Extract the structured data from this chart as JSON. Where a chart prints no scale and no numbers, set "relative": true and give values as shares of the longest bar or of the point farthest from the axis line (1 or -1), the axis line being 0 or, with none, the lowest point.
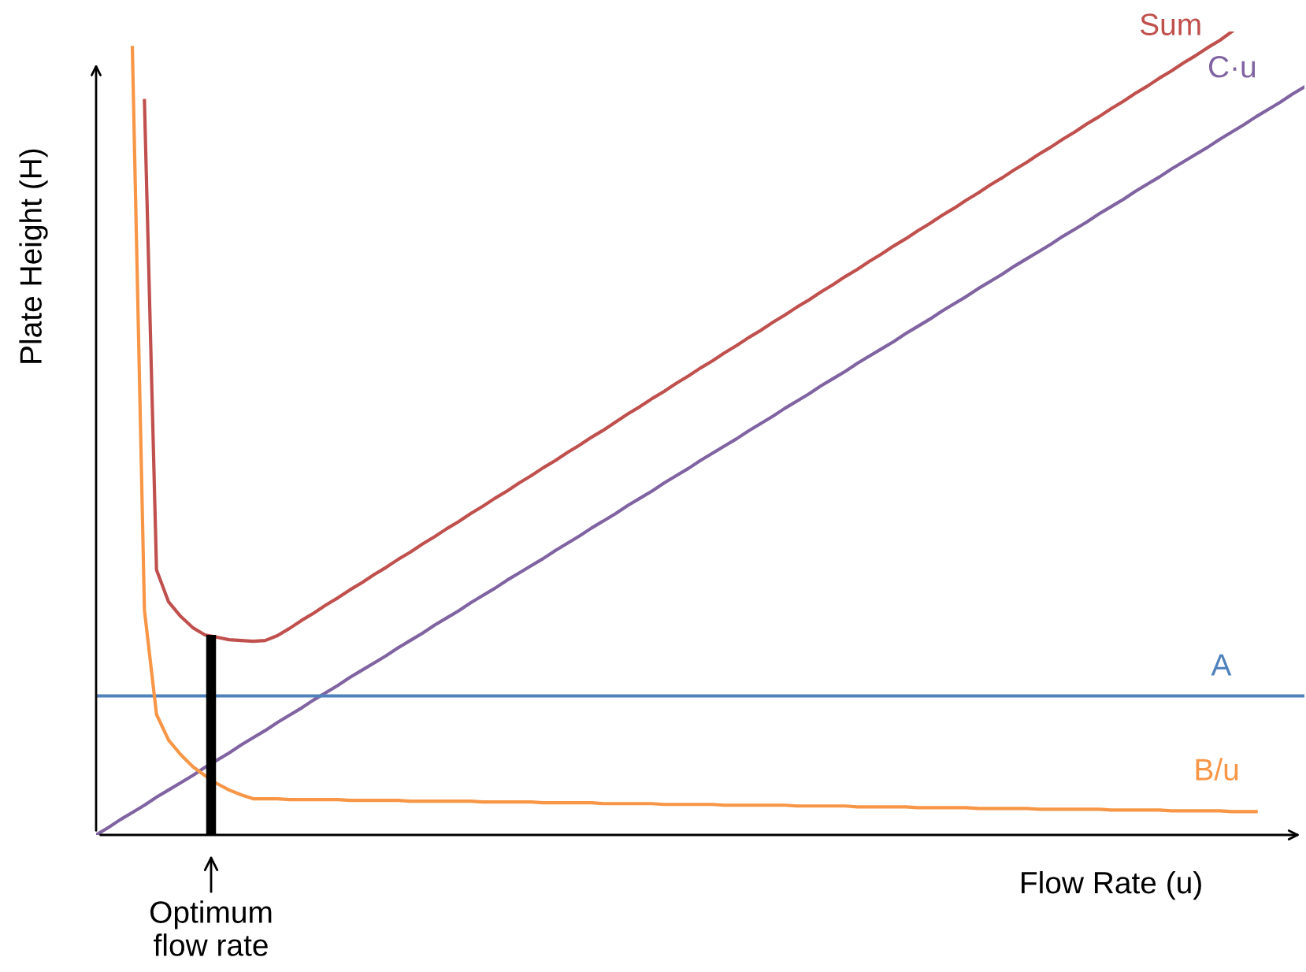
{
  "chart_data": {
    "type": "line",
    "relative": true,
    "xlabel": "Flow Rate (u)",
    "ylabel": "Plate Height (H)",
    "legend": false,
    "categories": [
      null,
      null,
      null,
      null,
      null,
      null,
      null,
      null,
      null,
      null,
      null,
      null,
      null,
      null,
      null,
      null,
      null,
      null,
      null,
      null,
      null,
      null,
      null,
      null,
      null,
      null,
      null,
      null,
      null,
      null,
      null,
      null,
      null,
      null,
      null,
      null,
      null,
      null,
      null,
      null,
      null,
      null,
      null,
      null,
      null,
      null,
      null,
      null,
      null,
      null,
      null,
      null,
      null,
      null,
      null,
      null,
      null,
      null,
      null,
      null,
      null,
      null,
      null,
      null,
      null,
      null,
      null,
      null,
      null,
      null,
      null,
      null,
      null,
      null,
      null,
      null,
      null,
      null,
      null,
      null,
      null,
      null,
      null,
      null,
      null,
      null,
      null,
      null,
      null,
      null,
      null,
      null,
      null,
      null,
      null,
      null,
      null,
      null,
      null,
      null,
      null
    ],
    "series": [
      {
        "name": "Sum",
        "color": "#c0504d",
        "values": [
          null,
          null,
          null,
          null,
          0.914,
          0.33,
          0.29,
          0.272,
          0.258,
          0.249,
          0.246,
          0.243,
          0.242,
          0.241,
          0.242,
          0.248,
          0.257,
          0.267,
          0.276,
          0.286,
          0.295,
          0.305,
          0.314,
          0.324,
          0.333,
          0.343,
          0.352,
          0.362,
          0.371,
          0.381,
          0.39,
          0.4,
          0.409,
          0.419,
          0.428,
          0.438,
          0.447,
          0.457,
          0.466,
          0.476,
          0.485,
          0.495,
          0.504,
          0.514,
          0.524,
          0.533,
          0.543,
          0.552,
          0.562,
          0.571,
          0.581,
          0.59,
          0.6,
          0.609,
          0.619,
          0.628,
          0.638,
          0.647,
          0.657,
          0.666,
          0.676,
          0.685,
          0.695,
          0.704,
          0.714,
          0.723,
          0.733,
          0.742,
          0.752,
          0.761,
          0.771,
          0.78,
          0.79,
          0.799,
          0.809,
          0.818,
          0.828,
          0.837,
          0.847,
          0.856,
          0.866,
          0.875,
          0.885,
          0.894,
          0.904,
          0.913,
          0.923,
          0.932,
          0.942,
          0.951,
          0.961,
          0.97,
          0.98,
          0.989,
          1,
          null,
          null,
          null,
          null,
          null,
          null
        ]
      },
      {
        "name": "C·u",
        "color": "#8064a2",
        "values": [
          0,
          0.009,
          0.019,
          0.028,
          0.037,
          0.047,
          0.056,
          0.065,
          0.074,
          0.084,
          0.093,
          0.102,
          0.112,
          0.121,
          0.13,
          0.14,
          0.149,
          0.158,
          0.168,
          0.177,
          0.186,
          0.196,
          0.205,
          0.214,
          0.223,
          0.233,
          0.242,
          0.251,
          0.261,
          0.27,
          0.279,
          0.289,
          0.298,
          0.307,
          0.317,
          0.326,
          0.335,
          0.344,
          0.354,
          0.363,
          0.372,
          0.382,
          0.391,
          0.4,
          0.41,
          0.419,
          0.428,
          0.438,
          0.447,
          0.456,
          0.466,
          0.475,
          0.484,
          0.493,
          0.503,
          0.512,
          0.521,
          0.531,
          0.54,
          0.549,
          0.559,
          0.568,
          0.577,
          0.587,
          0.596,
          0.605,
          0.614,
          0.624,
          0.633,
          0.642,
          0.652,
          0.661,
          0.67,
          0.68,
          0.689,
          0.698,
          0.708,
          0.717,
          0.726,
          0.735,
          0.745,
          0.754,
          0.763,
          0.773,
          0.782,
          0.791,
          0.801,
          0.81,
          0.819,
          0.829,
          0.838,
          0.847,
          0.856,
          0.866,
          0.875,
          0.884,
          0.894,
          0.903,
          0.912,
          0.922,
          0.931
        ]
      },
      {
        "name": "A",
        "color": "#4f81bd",
        "values": [
          0.173,
          0.173,
          0.173,
          0.173,
          0.173,
          0.173,
          0.173,
          0.173,
          0.173,
          0.173,
          0.173,
          0.173,
          0.173,
          0.173,
          0.173,
          0.173,
          0.173,
          0.173,
          0.173,
          0.173,
          0.173,
          0.173,
          0.173,
          0.173,
          0.173,
          0.173,
          0.173,
          0.173,
          0.173,
          0.173,
          0.173,
          0.173,
          0.173,
          0.173,
          0.173,
          0.173,
          0.173,
          0.173,
          0.173,
          0.173,
          0.173,
          0.173,
          0.173,
          0.173,
          0.173,
          0.173,
          0.173,
          0.173,
          0.173,
          0.173,
          0.173,
          0.173,
          0.173,
          0.173,
          0.173,
          0.173,
          0.173,
          0.173,
          0.173,
          0.173,
          0.173,
          0.173,
          0.173,
          0.173,
          0.173,
          0.173,
          0.173,
          0.173,
          0.173,
          0.173,
          0.173,
          0.173,
          0.173,
          0.173,
          0.173,
          0.173,
          0.173,
          0.173,
          0.173,
          0.173,
          0.173,
          0.173,
          0.173,
          0.173,
          0.173,
          0.173,
          0.173,
          0.173,
          0.173,
          0.173,
          0.173,
          0.173,
          0.173,
          0.173,
          0.173,
          0.173,
          0.173,
          0.173,
          0.173,
          0.173,
          0.173
        ]
      },
      {
        "name": "B/u",
        "color": "#f79646",
        "values": [
          null,
          null,
          null,
          0.98,
          0.28,
          0.15,
          0.118,
          0.1,
          0.085,
          0.074,
          0.064,
          0.056,
          0.05,
          0.045,
          0.045,
          0.045,
          0.044,
          0.044,
          0.044,
          0.044,
          0.044,
          0.043,
          0.043,
          0.043,
          0.043,
          0.043,
          0.042,
          0.042,
          0.042,
          0.042,
          0.042,
          0.042,
          0.041,
          0.041,
          0.041,
          0.041,
          0.041,
          0.04,
          0.04,
          0.04,
          0.04,
          0.04,
          0.039,
          0.039,
          0.039,
          0.039,
          0.039,
          0.038,
          0.038,
          0.038,
          0.038,
          0.038,
          0.037,
          0.037,
          0.037,
          0.037,
          0.037,
          0.037,
          0.036,
          0.036,
          0.036,
          0.036,
          0.036,
          0.035,
          0.035,
          0.035,
          0.035,
          0.035,
          0.034,
          0.034,
          0.034,
          0.034,
          0.034,
          0.033,
          0.033,
          0.033,
          0.033,
          0.033,
          0.032,
          0.032,
          0.032,
          0.032,
          0.032,
          0.032,
          0.031,
          0.031,
          0.031,
          0.031,
          0.031,
          0.03,
          0.03,
          0.03,
          0.03,
          0.03,
          0.029,
          0.029,
          0.029,
          null,
          null,
          null,
          null
        ]
      }
    ],
    "annotations": [
      "Optimum\nflow rate"
    ]
  }
}
